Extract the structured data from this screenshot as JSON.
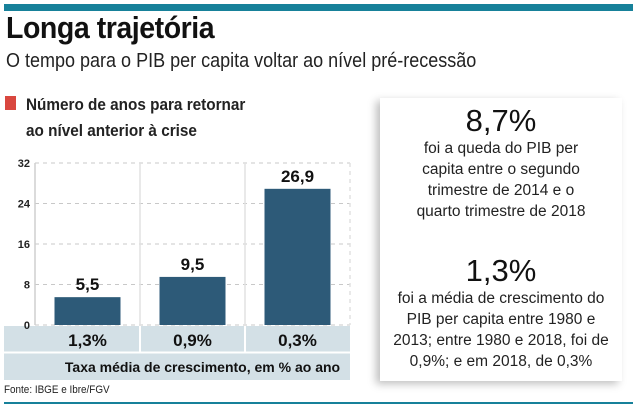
{
  "header": {
    "title": "Longa trajetória",
    "subtitle": "O tempo para o PIB per capita voltar ao nível pré-recessão",
    "accent_color": "#17819a"
  },
  "legend": {
    "line1": "Número de anos para retornar",
    "line2": "ao nível anterior à crise",
    "color": "#d9473f"
  },
  "chart_data": {
    "type": "bar",
    "title": "Número de anos para retornar ao nível anterior à crise",
    "categories": [
      "1,3%",
      "0,9%",
      "0,3%"
    ],
    "values": [
      5.5,
      9.5,
      26.9
    ],
    "value_labels": [
      "5,5",
      "9,5",
      "26,9"
    ],
    "xlabel": "Taxa média  de crescimento, em % ao ano",
    "ylabel": "",
    "ylim": [
      0,
      32
    ],
    "yticks": [
      0,
      8,
      16,
      24,
      32
    ],
    "grid": true,
    "bar_color": "#2d5a78",
    "category_band_color": "#d3e0e6"
  },
  "source": "Fonte: IBGE e Ibre/FGV",
  "card": {
    "stat1": "8,7%",
    "stat1_desc": [
      "foi a queda do PIB per",
      "capita entre o segundo",
      "trimestre de 2014 e o",
      "quarto trimestre de 2018"
    ],
    "stat2": "1,3%",
    "stat2_desc": [
      "foi a média de crescimento do",
      "PIB per capita entre 1980 e",
      "2013; entre 1980 e 2018, foi de",
      "0,9%; e em 2018, de 0,3%"
    ]
  }
}
